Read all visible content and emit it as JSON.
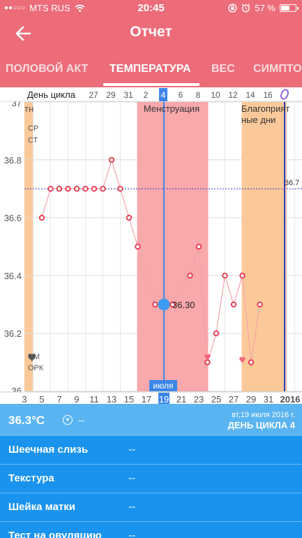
{
  "status_bar": {
    "carrier": "MTS RUS",
    "time": "20:45",
    "battery": "57 %"
  },
  "header": {
    "title": "Отчет"
  },
  "tabs": [
    {
      "label": "ПОЛОВОЙ АКТ",
      "active": false
    },
    {
      "label": "ТЕМПЕРАТУРА",
      "active": true
    },
    {
      "label": "ВЕС",
      "active": false
    },
    {
      "label": "СИМПТО",
      "active": false
    }
  ],
  "chart_data": {
    "type": "line",
    "cycle_day_label": "День цикла",
    "cycle_days": [
      "27",
      "29",
      "31",
      "2",
      "4",
      "6",
      "8",
      "10",
      "12",
      "14",
      "16"
    ],
    "selected_cycle_day": "4",
    "date_ticks": [
      "3",
      "5",
      "7",
      "9",
      "11",
      "13",
      "15",
      "17",
      "19",
      "21",
      "23",
      "25",
      "27",
      "29",
      "31",
      "2016"
    ],
    "month_label": "июля",
    "selected_date": "19",
    "ylim": [
      36.0,
      37.0
    ],
    "y_ticks": [
      "36",
      "36.2",
      "36.4",
      "36.6",
      "36.8",
      "37"
    ],
    "coverline": 36.7,
    "coverline_label": "36.7",
    "regions": [
      {
        "label": "Менструация",
        "from_day": 16,
        "to_day": 24,
        "color": "#f9a8ab"
      },
      {
        "label": "Благоприятные дни",
        "from_day": 28,
        "to_day": 33,
        "color": "#fbc999"
      }
    ],
    "left_labels": [
      "тн",
      "СР",
      "СТ",
      "СМ",
      "ОРК"
    ],
    "points": [
      {
        "day": 5,
        "temp": 36.6
      },
      {
        "day": 6,
        "temp": 36.7
      },
      {
        "day": 7,
        "temp": 36.7
      },
      {
        "day": 8,
        "temp": 36.7
      },
      {
        "day": 9,
        "temp": 36.7
      },
      {
        "day": 10,
        "temp": 36.7
      },
      {
        "day": 11,
        "temp": 36.7
      },
      {
        "day": 12,
        "temp": 36.7
      },
      {
        "day": 13,
        "temp": 36.8
      },
      {
        "day": 14,
        "temp": 36.7
      },
      {
        "day": 15,
        "temp": 36.6
      },
      {
        "day": 16,
        "temp": 36.5
      },
      {
        "day": 18,
        "temp": 36.3
      },
      {
        "day": 19,
        "temp": 36.3
      },
      {
        "day": 20,
        "temp": 36.3
      },
      {
        "day": 22,
        "temp": 36.4
      },
      {
        "day": 23,
        "temp": 36.5
      },
      {
        "day": 24,
        "temp": 36.1
      },
      {
        "day": 25,
        "temp": 36.2
      },
      {
        "day": 26,
        "temp": 36.4
      },
      {
        "day": 27,
        "temp": 36.3
      },
      {
        "day": 28,
        "temp": 36.4
      },
      {
        "day": 29,
        "temp": 36.1
      },
      {
        "day": 30,
        "temp": 36.3
      }
    ],
    "hearts": [
      {
        "day": 24,
        "temp": 36.12
      },
      {
        "day": 28,
        "temp": 36.11
      }
    ],
    "selected_point": {
      "day": 19,
      "temp": 36.3,
      "label": "36.30"
    }
  },
  "summary": {
    "temperature": "36.3°C",
    "intercourse": "--",
    "date": "вт,19 июля 2016 г.",
    "cycle_day": "ДЕНЬ ЦИКЛА 4"
  },
  "rows": [
    {
      "label": "Шеечная слизь",
      "value": "--"
    },
    {
      "label": "Текстура",
      "value": "--"
    },
    {
      "label": "Шейка матки",
      "value": "--"
    },
    {
      "label": "Тест на овуляцию",
      "value": "--"
    }
  ]
}
